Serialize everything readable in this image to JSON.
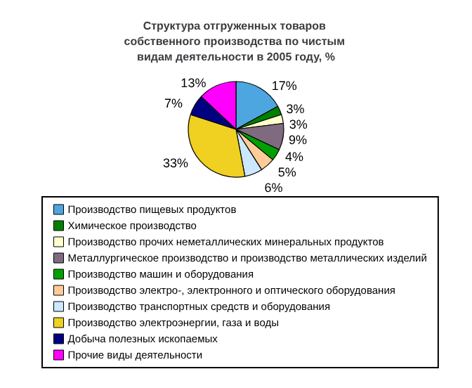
{
  "chart_data": {
    "type": "pie",
    "title": "Структура отгруженных товаров собственного производства по чистым видам деятельности в 2005 году, %",
    "categories": [
      "Производство пищевых продуктов",
      "Химическое производство",
      "Производство прочих неметаллических минеральных продуктов",
      "Металлургическое производство и производство металлических изделий",
      "Производство машин и оборудования",
      "Производство электро-, электронного и оптического оборудования",
      "Производство транспортных средств и оборудования",
      "Производство электроэнергии, газа и воды",
      "Добыча полезных ископаемых",
      "Прочие виды деятельности"
    ],
    "values": [
      17,
      3,
      3,
      9,
      4,
      5,
      6,
      33,
      7,
      13
    ],
    "colors": [
      "#4da6e0",
      "#008000",
      "#ffffcc",
      "#7f6a80",
      "#00a000",
      "#ffcc99",
      "#cce8ff",
      "#f0d020",
      "#000080",
      "#ff00ff"
    ],
    "value_labels": [
      "17%",
      "3%",
      "3%",
      "9%",
      "4%",
      "5%",
      "6%",
      "33%",
      "7%",
      "13%"
    ],
    "legend": "bottom"
  }
}
